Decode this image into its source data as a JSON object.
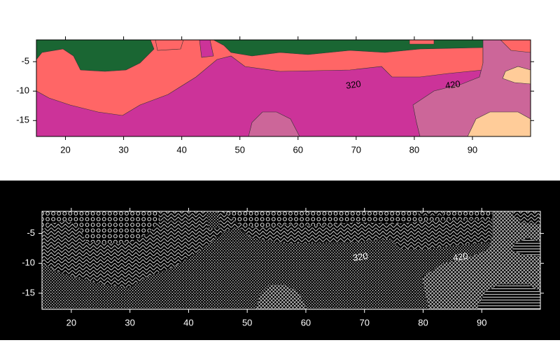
{
  "chart_data": [
    {
      "type": "contour",
      "xlim": [
        15,
        100
      ],
      "ylim": [
        -17.7,
        -1.3
      ],
      "xticks": [
        20,
        30,
        40,
        50,
        60,
        70,
        80,
        90
      ],
      "yticks": [
        -5,
        -10,
        -15
      ],
      "contour_labels": [
        320,
        420
      ]
    },
    {
      "type": "contour",
      "xlim": [
        15,
        100
      ],
      "ylim": [
        -17.7,
        -1.3
      ],
      "xticks": [
        20,
        30,
        40,
        50,
        60,
        70,
        80,
        90
      ],
      "yticks": [
        -5,
        -10,
        -15
      ],
      "contour_labels": [
        320,
        420
      ]
    }
  ]
}
